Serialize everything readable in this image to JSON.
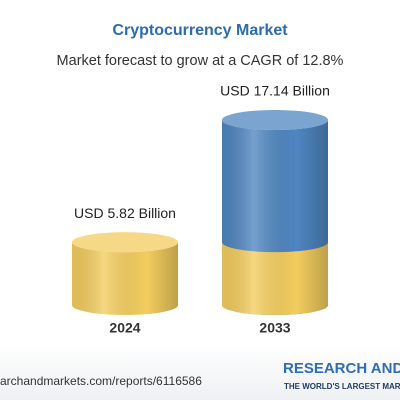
{
  "chart_data": {
    "type": "cylinder-bar",
    "title": "Cryptocurrency Market",
    "subtitle": "Market forecast to grow at a CAGR of 12.8%",
    "categories": [
      "2024",
      "2033"
    ],
    "values": [
      5.82,
      17.14
    ],
    "value_labels": [
      "USD 5.82 Billion",
      "USD 17.14 Billion"
    ],
    "color": "#f3cd5e",
    "highlight_color": "#4f86c0"
  },
  "footer": {
    "url": "archandmarkets.com/reports/6116586",
    "brand": "RESEARCH AND",
    "tagline": "THE WORLD'S LARGEST MAR"
  }
}
